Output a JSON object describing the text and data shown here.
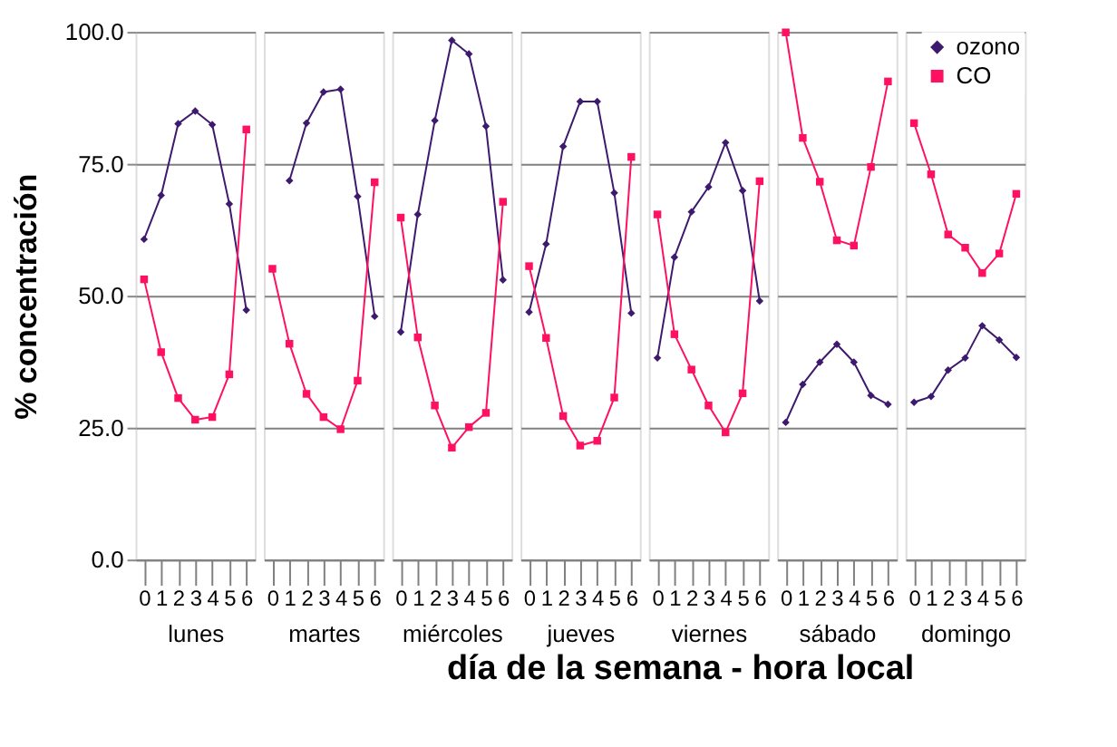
{
  "chart_data": [
    {
      "type": "line",
      "xlabel": "lunes",
      "ylabel": "% concentración",
      "categories": [
        "0",
        "1",
        "2",
        "3",
        "4",
        "5",
        "6"
      ],
      "ylim": [
        0,
        100
      ],
      "yticks": [
        {
          "value": 0,
          "label": "0.0"
        },
        {
          "value": 25,
          "label": "25.0"
        },
        {
          "value": 50,
          "label": "50.0"
        },
        {
          "value": 75,
          "label": "75.0"
        },
        {
          "value": 100,
          "label": "100.0"
        }
      ],
      "grid": "y",
      "series": [
        {
          "color": "#3d1a6e",
          "marker": "diamond",
          "values": [
            60.7,
            69,
            82.6,
            85,
            82.4,
            67.4,
            47.3
          ]
        },
        {
          "color": "#ff1060",
          "marker": "square",
          "values": [
            53.1,
            39.3,
            30.6,
            26.5,
            27,
            35.1,
            81.5
          ]
        }
      ]
    },
    {
      "type": "line",
      "xlabel": "martes",
      "categories": [
        "0",
        "1",
        "2",
        "3",
        "4",
        "5",
        "6"
      ],
      "ylim": [
        0,
        100
      ],
      "yticks": [
        {
          "value": 0,
          "label": null
        },
        {
          "value": 25,
          "label": null
        },
        {
          "value": 50,
          "label": null
        },
        {
          "value": 75,
          "label": null
        },
        {
          "value": 100,
          "label": null
        }
      ],
      "grid": "y",
      "tick_labels": "x",
      "series": [
        {
          "color": "#3d1a6e",
          "marker": "diamond",
          "values": [
            null,
            71.8,
            82.7,
            88.6,
            89.1,
            68.8,
            46.1
          ]
        },
        {
          "color": "#ff1060",
          "marker": "square",
          "values": [
            55.1,
            40.9,
            31.4,
            27,
            24.7,
            33.9,
            71.5
          ]
        }
      ]
    },
    {
      "type": "line",
      "xlabel": "miércoles",
      "categories": [
        "0",
        "1",
        "2",
        "3",
        "4",
        "5",
        "6"
      ],
      "ylim": [
        0,
        100
      ],
      "yticks": [
        {
          "value": 0,
          "label": null
        },
        {
          "value": 25,
          "label": null
        },
        {
          "value": 50,
          "label": null
        },
        {
          "value": 75,
          "label": null
        },
        {
          "value": 100,
          "label": null
        }
      ],
      "grid": "y",
      "tick_labels": "x",
      "series": [
        {
          "color": "#3d1a6e",
          "marker": "diamond",
          "values": [
            43.1,
            65.4,
            83.2,
            98.4,
            95.8,
            82.1,
            53
          ]
        },
        {
          "color": "#ff1060",
          "marker": "square",
          "values": [
            64.8,
            42.1,
            29.2,
            21.2,
            25.1,
            27.8,
            67.8
          ]
        }
      ]
    },
    {
      "type": "line",
      "xlabel": "jueves",
      "categories": [
        "0",
        "1",
        "2",
        "3",
        "4",
        "5",
        "6"
      ],
      "ylim": [
        0,
        100
      ],
      "yticks": [
        {
          "value": 0,
          "label": null
        },
        {
          "value": 25,
          "label": null
        },
        {
          "value": 50,
          "label": null
        },
        {
          "value": 75,
          "label": null
        },
        {
          "value": 100,
          "label": null
        }
      ],
      "grid": "y",
      "tick_labels": "x",
      "annotations": [
        "día de la semana - hora local"
      ],
      "series": [
        {
          "color": "#3d1a6e",
          "marker": "diamond",
          "values": [
            46.9,
            59.8,
            78.3,
            86.8,
            86.8,
            69.5,
            46.7
          ]
        },
        {
          "color": "#ff1060",
          "marker": "square",
          "values": [
            55.6,
            42,
            27.2,
            21.6,
            22.5,
            30.7,
            76.3
          ]
        }
      ]
    },
    {
      "type": "line",
      "xlabel": "viernes",
      "categories": [
        "0",
        "1",
        "2",
        "3",
        "4",
        "5",
        "6"
      ],
      "ylim": [
        0,
        100
      ],
      "yticks": [
        {
          "value": 0,
          "label": null
        },
        {
          "value": 25,
          "label": null
        },
        {
          "value": 50,
          "label": null
        },
        {
          "value": 75,
          "label": null
        },
        {
          "value": 100,
          "label": null
        }
      ],
      "grid": "y",
      "tick_labels": "x",
      "series": [
        {
          "color": "#3d1a6e",
          "marker": "diamond",
          "values": [
            38.2,
            57.3,
            65.9,
            70.6,
            79,
            69.9,
            49
          ]
        },
        {
          "color": "#ff1060",
          "marker": "square",
          "values": [
            65.4,
            42.7,
            36,
            29.2,
            24.1,
            31.5,
            71.7
          ]
        }
      ]
    },
    {
      "type": "line",
      "xlabel": "sábado",
      "categories": [
        "0",
        "1",
        "2",
        "3",
        "4",
        "5",
        "6"
      ],
      "ylim": [
        0,
        100
      ],
      "yticks": [
        {
          "value": 0,
          "label": null
        },
        {
          "value": 25,
          "label": null
        },
        {
          "value": 50,
          "label": null
        },
        {
          "value": 75,
          "label": null
        },
        {
          "value": 100,
          "label": null
        }
      ],
      "grid": "y",
      "tick_labels": "x",
      "series": [
        {
          "color": "#3d1a6e",
          "marker": "diamond",
          "values": [
            26,
            33.2,
            37.4,
            40.8,
            37.4,
            31.1,
            29.4
          ]
        },
        {
          "color": "#ff1060",
          "marker": "square",
          "values": [
            99.9,
            79.9,
            71.6,
            60.5,
            59.5,
            74.4,
            90.6
          ]
        }
      ]
    },
    {
      "type": "line",
      "xlabel": "domingo",
      "categories": [
        "0",
        "1",
        "2",
        "3",
        "4",
        "5",
        "6"
      ],
      "ylim": [
        0,
        100
      ],
      "yticks": [
        {
          "value": 0,
          "label": null
        },
        {
          "value": 25,
          "label": null
        },
        {
          "value": 50,
          "label": null
        },
        {
          "value": 75,
          "label": null
        },
        {
          "value": 100,
          "label": null
        }
      ],
      "grid": "y",
      "tick_labels": "x",
      "legend": "top right",
      "series": [
        {
          "name": "ozono",
          "color": "#3d1a6e",
          "marker": "diamond",
          "values": [
            29.8,
            30.9,
            35.9,
            38.2,
            44.3,
            41.6,
            38.3
          ]
        },
        {
          "name": "CO",
          "color": "#ff1060",
          "marker": "square",
          "values": [
            82.7,
            73,
            61.6,
            59.1,
            54.3,
            58,
            69.3
          ]
        }
      ]
    }
  ]
}
